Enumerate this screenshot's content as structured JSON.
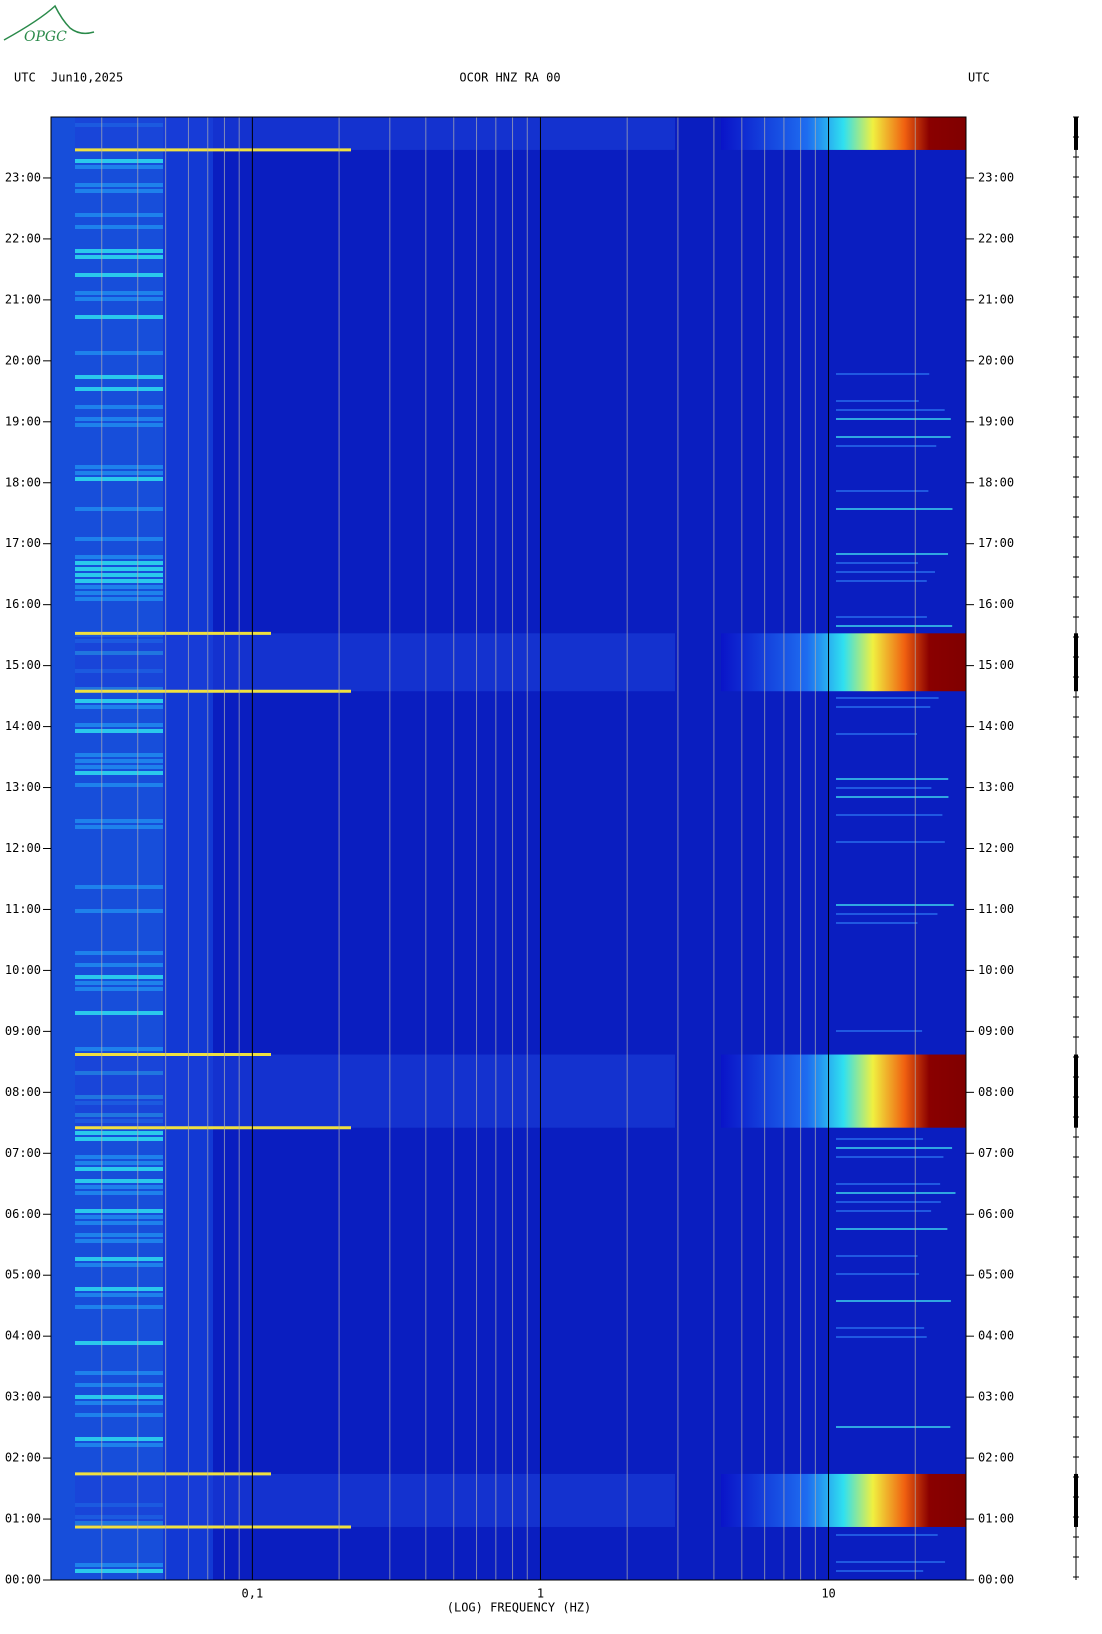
{
  "chart_data": {
    "type": "spectrogram",
    "logo": "OPGC",
    "title": "OCOR HNZ RA 00",
    "date": "Jun10,2025",
    "left_label": "UTC",
    "right_label": "UTC",
    "x_label": "(LOG) FREQUENCY (HZ)",
    "x_log": true,
    "xlim": [
      0.02,
      30
    ],
    "xticks": [
      {
        "value": 0.1,
        "label": "0,1"
      },
      1,
      10
    ],
    "xgrid": [
      0.03,
      0.04,
      0.05,
      0.06,
      0.07,
      0.08,
      0.09,
      0.2,
      0.3,
      0.4,
      0.5,
      0.6,
      0.7,
      0.8,
      0.9,
      2,
      3,
      4,
      5,
      6,
      7,
      8,
      9,
      20
    ],
    "ylim": [
      0,
      24
    ],
    "yticks": [
      {
        "value": 0,
        "label": "00:00"
      },
      {
        "value": 1,
        "label": "01:00"
      },
      {
        "value": 2,
        "label": "02:00"
      },
      {
        "value": 3,
        "label": "03:00"
      },
      {
        "value": 4,
        "label": "04:00"
      },
      {
        "value": 5,
        "label": "05:00"
      },
      {
        "value": 6,
        "label": "06:00"
      },
      {
        "value": 7,
        "label": "07:00"
      },
      {
        "value": 8,
        "label": "08:00"
      },
      {
        "value": 9,
        "label": "09:00"
      },
      {
        "value": 10,
        "label": "10:00"
      },
      {
        "value": 11,
        "label": "11:00"
      },
      {
        "value": 12,
        "label": "12:00"
      },
      {
        "value": 13,
        "label": "13:00"
      },
      {
        "value": 14,
        "label": "14:00"
      },
      {
        "value": 15,
        "label": "15:00"
      },
      {
        "value": 16,
        "label": "16:00"
      },
      {
        "value": 17,
        "label": "17:00"
      },
      {
        "value": 18,
        "label": "18:00"
      },
      {
        "value": 19,
        "label": "19:00"
      },
      {
        "value": 20,
        "label": "20:00"
      },
      {
        "value": 21,
        "label": "21:00"
      },
      {
        "value": 22,
        "label": "22:00"
      },
      {
        "value": 23,
        "label": "23:00"
      }
    ],
    "events": [
      {
        "start": 23.46,
        "end": 24
      },
      {
        "start": 14.58,
        "end": 15.53
      },
      {
        "start": 7.42,
        "end": 8.62
      },
      {
        "start": 0.87,
        "end": 1.74
      }
    ]
  }
}
